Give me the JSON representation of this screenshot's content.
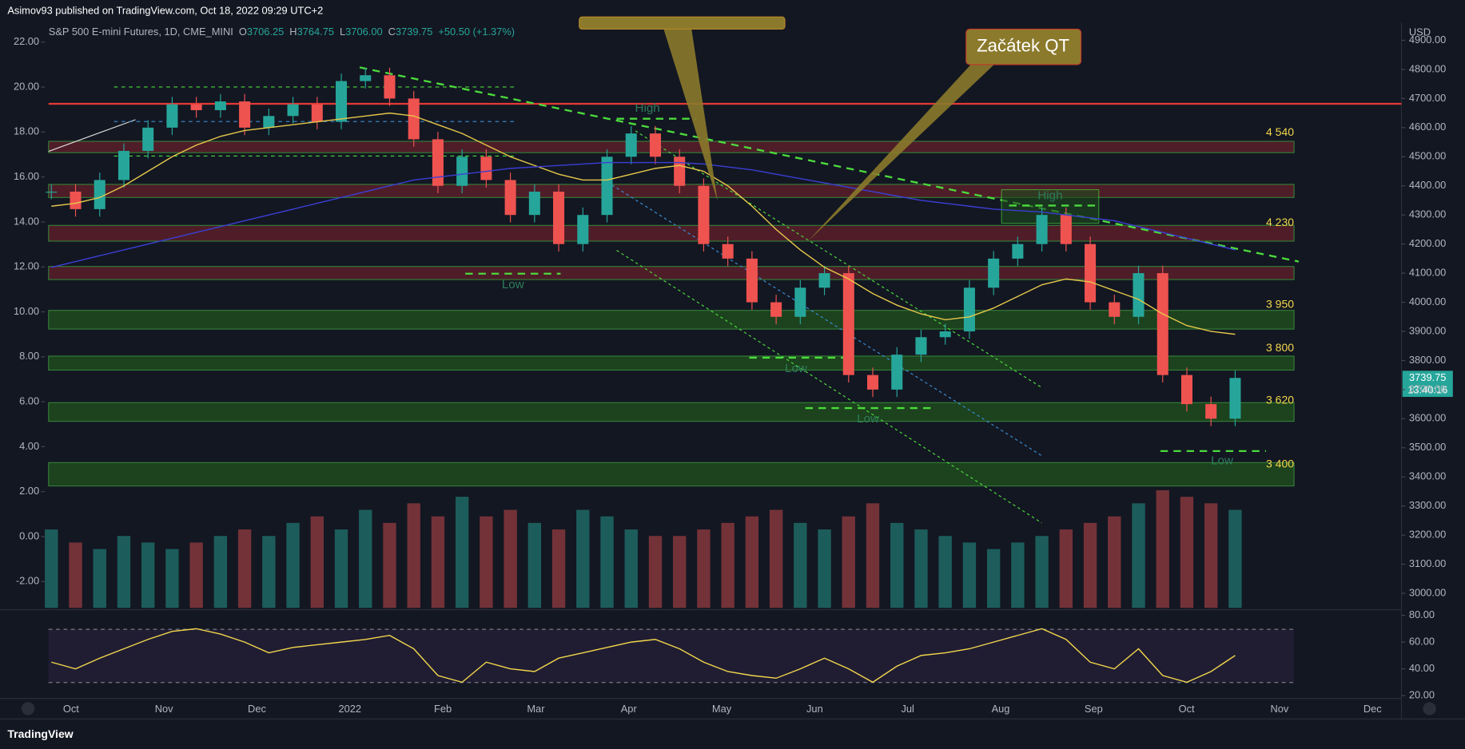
{
  "header": {
    "published": "Asimov93 published on TradingView.com, Oct 18, 2022 09:29 UTC+2",
    "brand": "TradingView"
  },
  "chart_data": {
    "type": "candlestick",
    "title": "S&P 500 E-mini Futures, 1D, CME_MINI",
    "ohlc_labels": [
      "O",
      "H",
      "L",
      "C"
    ],
    "ohlc_values": [
      "3706.25",
      "3764.75",
      "3706.00",
      "3739.75"
    ],
    "change": "+50.50 (+1.37%)",
    "currency": "USD",
    "last_price": "3739.75",
    "countdown": "13:40:16",
    "xticks": [
      "Oct",
      "Nov",
      "Dec",
      "2022",
      "Feb",
      "Mar",
      "Apr",
      "May",
      "Jun",
      "Jul",
      "Aug",
      "Sep",
      "Oct",
      "Nov",
      "Dec"
    ],
    "ylim": [
      2950,
      4900
    ],
    "yticks": [
      {
        "value": 4900,
        "label": "4900.00"
      },
      {
        "value": 4800,
        "label": "4800.00"
      },
      {
        "value": 4700,
        "label": "4700.00"
      },
      {
        "value": 4600,
        "label": "4600.00"
      },
      {
        "value": 4500,
        "label": "4500.00"
      },
      {
        "value": 4400,
        "label": "4400.00"
      },
      {
        "value": 4300,
        "label": "4300.00"
      },
      {
        "value": 4200,
        "label": "4200.00"
      },
      {
        "value": 4100,
        "label": "4100.00"
      },
      {
        "value": 4000,
        "label": "4000.00"
      },
      {
        "value": 3900,
        "label": "3900.00"
      },
      {
        "value": 3800,
        "label": "3800.00"
      },
      {
        "value": 3700,
        "label": "3700.00"
      },
      {
        "value": 3600,
        "label": "3600.00"
      },
      {
        "value": 3500,
        "label": "3500.00"
      },
      {
        "value": 3400,
        "label": "3400.00"
      },
      {
        "value": 3300,
        "label": "3300.00"
      },
      {
        "value": 3200,
        "label": "3200.00"
      },
      {
        "value": 3100,
        "label": "3100.00"
      },
      {
        "value": 3000,
        "label": "3000.00"
      }
    ],
    "y2lim": [
      -3.17,
      22.08
    ],
    "y2ticks": [
      {
        "value": 22,
        "label": "22.00"
      },
      {
        "value": 20,
        "label": "20.00"
      },
      {
        "value": 18,
        "label": "18.00"
      },
      {
        "value": 16,
        "label": "16.00"
      },
      {
        "value": 14,
        "label": "14.00"
      },
      {
        "value": 12,
        "label": "12.00"
      },
      {
        "value": 10,
        "label": "10.00"
      },
      {
        "value": 8,
        "label": "8.00"
      },
      {
        "value": 6,
        "label": "6.00"
      },
      {
        "value": 4,
        "label": "4.00"
      },
      {
        "value": 2,
        "label": "2.00"
      },
      {
        "value": 0,
        "label": "0.00"
      },
      {
        "value": -2,
        "label": "-2.00"
      }
    ],
    "closes": [
      4380,
      4320,
      4420,
      4520,
      4600,
      4680,
      4660,
      4690,
      4600,
      4640,
      4680,
      4620,
      4760,
      4780,
      4700,
      4560,
      4400,
      4500,
      4420,
      4300,
      4380,
      4200,
      4300,
      4500,
      4580,
      4500,
      4400,
      4200,
      4150,
      4000,
      3950,
      4050,
      4100,
      3750,
      3700,
      3820,
      3880,
      3900,
      4050,
      4150,
      4200,
      4300,
      4200,
      4000,
      3950,
      4100,
      3750,
      3650,
      3600,
      3740
    ],
    "ma_lines": [
      {
        "color": "#e6c84a",
        "values": [
          4330,
          4340,
          4360,
          4400,
          4450,
          4500,
          4540,
          4570,
          4590,
          4600,
          4610,
          4620,
          4630,
          4640,
          4650,
          4640,
          4610,
          4580,
          4540,
          4500,
          4470,
          4440,
          4420,
          4420,
          4440,
          4460,
          4470,
          4450,
          4400,
          4330,
          4250,
          4180,
          4120,
          4080,
          4030,
          3990,
          3960,
          3940,
          3950,
          3980,
          4020,
          4060,
          4080,
          4070,
          4040,
          4010,
          3960,
          3920,
          3900,
          3890
        ]
      },
      {
        "color": "#3b3fd6",
        "values": [
          4120,
          4140,
          4160,
          4180,
          4200,
          4220,
          4240,
          4260,
          4280,
          4300,
          4320,
          4340,
          4360,
          4380,
          4400,
          4420,
          4430,
          4440,
          4450,
          4460,
          4465,
          4470,
          4475,
          4480,
          4480,
          4480,
          4480,
          4475,
          4465,
          4455,
          4440,
          4425,
          4410,
          4395,
          4380,
          4365,
          4350,
          4340,
          4330,
          4320,
          4315,
          4310,
          4300,
          4290,
          4280,
          4260,
          4240,
          4220,
          4200,
          4180
        ]
      }
    ],
    "zones": [
      {
        "low": 4514,
        "high": 4553,
        "color": "#5a1f2a"
      },
      {
        "low": 4360,
        "high": 4405,
        "color": "#5a1f2a"
      },
      {
        "low": 4210,
        "high": 4264,
        "color": "#5a1f2a"
      },
      {
        "low": 4078,
        "high": 4123,
        "color": "#5a1f2a"
      },
      {
        "low": 3908,
        "high": 3972,
        "color": "#1e4a1e"
      },
      {
        "low": 3767,
        "high": 3815,
        "color": "#1e4a1e"
      },
      {
        "low": 3591,
        "high": 3655,
        "color": "#1e4a1e"
      },
      {
        "low": 3369,
        "high": 3449,
        "color": "#1e4a1e"
      }
    ],
    "levels": [
      {
        "value": 4540,
        "label": "4 540"
      },
      {
        "value": 4230,
        "label": "4 230"
      },
      {
        "value": 3950,
        "label": "3 950"
      },
      {
        "value": 3800,
        "label": "3 800"
      },
      {
        "value": 3620,
        "label": "3 620"
      },
      {
        "value": 3400,
        "label": "3 400"
      }
    ],
    "annotation": "Začátek QT",
    "markers": [
      "High",
      "High",
      "Low",
      "Low",
      "Low",
      "Low"
    ],
    "volume": [
      60,
      50,
      45,
      55,
      50,
      45,
      50,
      55,
      60,
      55,
      65,
      70,
      60,
      75,
      65,
      80,
      70,
      85,
      70,
      75,
      65,
      60,
      75,
      70,
      60,
      55,
      55,
      60,
      65,
      70,
      75,
      65,
      60,
      70,
      80,
      65,
      60,
      55,
      50,
      45,
      50,
      55,
      60,
      65,
      70,
      80,
      90,
      85,
      80,
      75
    ],
    "rsi": {
      "ylim": [
        16.5,
        82.8
      ],
      "yticks": [
        {
          "value": 80,
          "label": "80.00"
        },
        {
          "value": 60,
          "label": "60.00"
        },
        {
          "value": 40,
          "label": "40.00"
        },
        {
          "value": 20,
          "label": "20.00"
        }
      ],
      "values": [
        45,
        40,
        48,
        55,
        62,
        68,
        70,
        66,
        60,
        52,
        56,
        58,
        60,
        62,
        65,
        55,
        35,
        30,
        45,
        40,
        38,
        48,
        52,
        56,
        60,
        62,
        55,
        45,
        38,
        35,
        33,
        40,
        48,
        40,
        30,
        42,
        50,
        52,
        55,
        60,
        65,
        70,
        62,
        45,
        40,
        55,
        35,
        30,
        38,
        50
      ]
    }
  }
}
